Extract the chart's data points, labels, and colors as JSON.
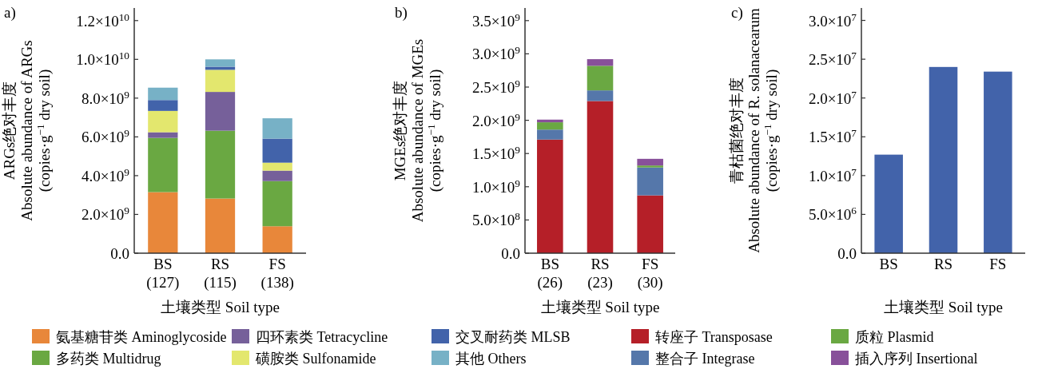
{
  "chart_data": [
    {
      "type": "bar",
      "title": "a)",
      "ylabel": "ARGs绝对丰度\nAbsolute abundance of ARGs\n(copies·g$^{−1}$ dry soil)",
      "xlabel": "土壤类型 Soil type",
      "categories": [
        "BS\n(127)",
        "RS\n(115)",
        "FS\n(138)"
      ],
      "stacked": true,
      "legend": "bottom",
      "ylim": [
        0,
        12650000000.0
      ],
      "yticks": [
        {
          "value": 0,
          "label": "0.0"
        },
        {
          "value": 2000000000.0,
          "label": "2.0×10$^{9}$"
        },
        {
          "value": 4000000000.0,
          "label": "4.0×10$^{9}$"
        },
        {
          "value": 6000000000.0,
          "label": "6.0×10$^{9}$"
        },
        {
          "value": 8000000000.0,
          "label": "8.0×10$^{9}$"
        },
        {
          "value": 10000000000.0,
          "label": "1.0×10$^{10}$"
        },
        {
          "value": 12000000000.0,
          "label": "1.2×10$^{10}$"
        }
      ],
      "series": [
        {
          "name": "氨基糖苷类 Aminoglycoside",
          "color": "#e8873a",
          "values": [
            3150000000.0,
            2820000000.0,
            1390000000.0
          ]
        },
        {
          "name": "多药类 Multidrug",
          "color": "#6aa842",
          "values": [
            2800000000.0,
            3500000000.0,
            2330000000.0
          ]
        },
        {
          "name": "四环素类 Tetracycline",
          "color": "#76609a",
          "values": [
            290000000.0,
            2000000000.0,
            540000000.0
          ]
        },
        {
          "name": "磺胺类 Sulfonamide",
          "color": "#e3e76e",
          "values": [
            1100000000.0,
            1140000000.0,
            410000000.0
          ]
        },
        {
          "name": "交叉耐药类 MLSB",
          "color": "#4263aa",
          "values": [
            560000000.0,
            160000000.0,
            1240000000.0
          ]
        },
        {
          "name": "其他 Others",
          "color": "#77b1c6",
          "values": [
            640000000.0,
            380000000.0,
            1050000000.0
          ]
        }
      ]
    },
    {
      "type": "bar",
      "title": "b)",
      "ylabel": "MGEs绝对丰度\nAbsolute abundance of MGEs\n(copies·g$^{−1}$ dry soil)",
      "xlabel": "土壤类型 Soil type",
      "categories": [
        "BS\n(26)",
        "RS\n(23)",
        "FS\n(30)"
      ],
      "stacked": true,
      "legend": "bottom",
      "ylim": [
        0,
        3690000000.0
      ],
      "yticks": [
        {
          "value": 0,
          "label": "0.0"
        },
        {
          "value": 500000000.0,
          "label": "5.0×10$^{8}$"
        },
        {
          "value": 1000000000.0,
          "label": "1.0×10$^{9}$"
        },
        {
          "value": 1500000000.0,
          "label": "1.5×10$^{9}$"
        },
        {
          "value": 2000000000.0,
          "label": "2.0×10$^{9}$"
        },
        {
          "value": 2500000000.0,
          "label": "2.5×10$^{9}$"
        },
        {
          "value": 3000000000.0,
          "label": "3.0×10$^{9}$"
        },
        {
          "value": 3500000000.0,
          "label": "3.5×10$^{9}$"
        }
      ],
      "series": [
        {
          "name": "转座子 Transposase",
          "color": "#b51f28",
          "values": [
            1710000000.0,
            2290000000.0,
            870000000.0
          ]
        },
        {
          "name": "整合子 Integrase",
          "color": "#5577aa",
          "values": [
            150000000.0,
            160000000.0,
            420000000.0
          ]
        },
        {
          "name": "质粒 Plasmid",
          "color": "#6aa842",
          "values": [
            110000000.0,
            370000000.0,
            30000000.0
          ]
        },
        {
          "name": "插入序列 Insertional",
          "color": "#88509a",
          "values": [
            40000000.0,
            100000000.0,
            100000000.0
          ]
        }
      ]
    },
    {
      "type": "bar",
      "title": "c)",
      "ylabel": "青枯菌绝对丰度\nAbsolute abundance of R. solanacearum\n(copies·g$^{−1}$ dry soil)",
      "xlabel": "土壤类型 Soil type",
      "categories": [
        "BS",
        "RS",
        "FS"
      ],
      "color": "#4263aa",
      "values": [
        12700000.0,
        24000000.0,
        23400000.0
      ],
      "ylim": [
        0,
        31600000.0
      ],
      "yticks": [
        {
          "value": 0,
          "label": "0.0"
        },
        {
          "value": 5000000.0,
          "label": "5.0×10$^{6}$"
        },
        {
          "value": 10000000.0,
          "label": "1.0×10$^{7}$"
        },
        {
          "value": 15000000.0,
          "label": "1.5×10$^{7}$"
        },
        {
          "value": 20000000.0,
          "label": "2.0×10$^{7}$"
        },
        {
          "value": 25000000.0,
          "label": "2.5×10$^{7}$"
        },
        {
          "value": 30000000.0,
          "label": "3.0×10$^{7}$"
        }
      ]
    }
  ]
}
